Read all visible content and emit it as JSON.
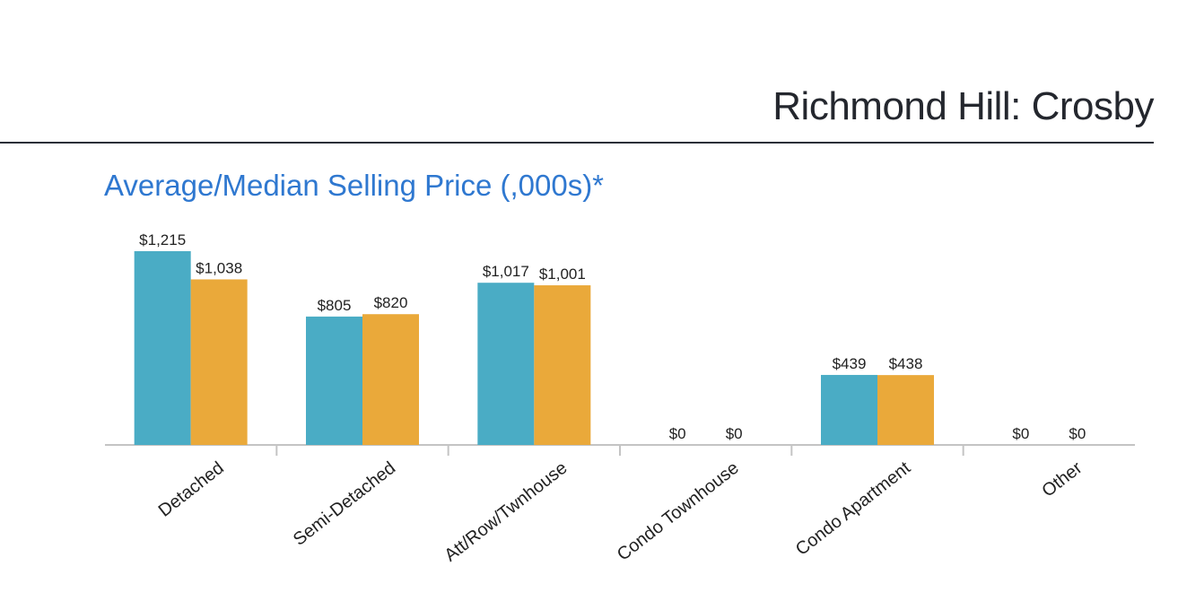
{
  "header": {
    "title": "Richmond Hill: Crosby"
  },
  "chart_data": {
    "type": "bar",
    "title": "Average/Median Selling Price (,000s)*",
    "categories": [
      "Detached",
      "Semi-Detached",
      "Att/Row/Twnhouse",
      "Condo Townhouse",
      "Condo Apartment",
      "Other"
    ],
    "series": [
      {
        "color": "#4aacc5",
        "values": [
          1215,
          805,
          1017,
          0,
          439,
          0
        ],
        "labels": [
          "$1,215",
          "$805",
          "$1,017",
          "$0",
          "$439",
          "$0"
        ]
      },
      {
        "color": "#eaa93a",
        "values": [
          1038,
          820,
          1001,
          0,
          438,
          0
        ],
        "labels": [
          "$1,038",
          "$820",
          "$1,001",
          "$0",
          "$438",
          "$0"
        ]
      }
    ],
    "xlabel": "",
    "ylabel": "",
    "ylim": [
      0,
      1215
    ],
    "grid": false,
    "legend": "none"
  }
}
